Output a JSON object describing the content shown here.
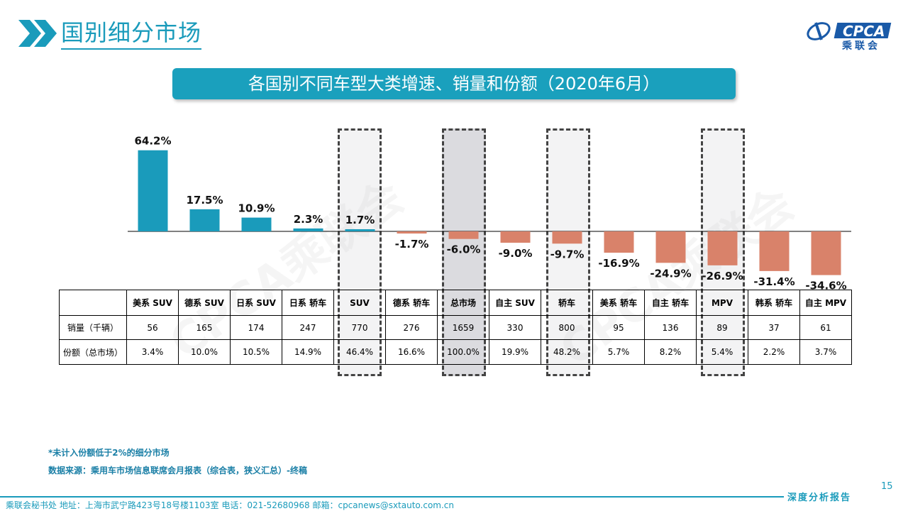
{
  "header": {
    "title": "国别细分市场",
    "logo_text": "CPCA",
    "logo_cn": "乘联会"
  },
  "banner": {
    "text": "各国别不同车型大类增速、销量和份额（2020年6月）"
  },
  "colors": {
    "accent": "#1a9bbb",
    "positive_bar": "#1a9bbb",
    "negative_bar": "#d9826a"
  },
  "chart_data": {
    "type": "bar",
    "categories": [
      "美系 SUV",
      "德系 SUV",
      "日系 SUV",
      "日系 轿车",
      "SUV",
      "德系 轿车",
      "总市场",
      "自主 SUV",
      "轿车",
      "美系 轿车",
      "自主 轿车",
      "MPV",
      "韩系 轿车",
      "自主 MPV"
    ],
    "values": [
      64.2,
      17.5,
      10.9,
      2.3,
      1.7,
      -1.7,
      -6.0,
      -9.0,
      -9.7,
      -16.9,
      -24.9,
      -26.9,
      -31.4,
      -34.6
    ],
    "value_labels": [
      "64.2%",
      "17.5%",
      "10.9%",
      "2.3%",
      "1.7%",
      "-1.7%",
      "-6.0%",
      "-9.0%",
      "-9.7%",
      "-16.9%",
      "-24.9%",
      "-26.9%",
      "-31.4%",
      "-34.6%"
    ],
    "unit": "%"
  },
  "table": {
    "row_labels": [
      "销量（千辆）",
      "份额（总市场）"
    ],
    "sales": [
      "56",
      "165",
      "174",
      "247",
      "770",
      "276",
      "1659",
      "330",
      "800",
      "95",
      "136",
      "89",
      "37",
      "61"
    ],
    "shares": [
      "3.4%",
      "10.0%",
      "10.5%",
      "14.9%",
      "46.4%",
      "16.6%",
      "100.0%",
      "19.9%",
      "48.2%",
      "5.7%",
      "8.2%",
      "5.4%",
      "2.2%",
      "3.7%"
    ]
  },
  "notes": {
    "note1": "*未计入份额低于2%的细分市场",
    "note2": "数据来源：乘用车市场信息联席会月报表（综合表，狭义汇总）-终稿"
  },
  "footer": {
    "page_number": "15",
    "right_label": "深度分析报告",
    "contact": "乘联会秘书处    地址：上海市武宁路423号18号楼1103室    电话：021-52680968    邮箱：cpcanews@sxtauto.com.cn"
  }
}
